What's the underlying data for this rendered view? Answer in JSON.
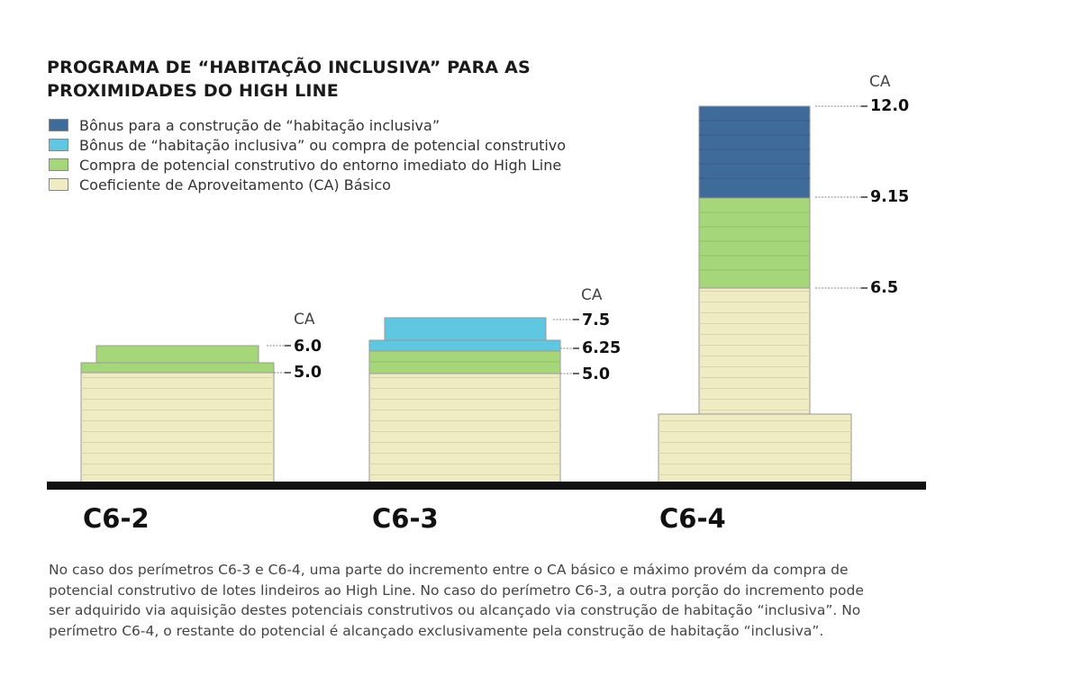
{
  "title": {
    "line1": "PROGRAMA DE “HABITAÇÃO INCLUSIVA” PARA AS",
    "line2": "PROXIMIDADES DO HIGH LINE"
  },
  "legend": [
    {
      "label": "Bônus para a construção de “habitação inclusiva”",
      "color": "#3e6b9a"
    },
    {
      "label": "Bônus de “habitação inclusiva” ou compra de potencial construtivo",
      "color": "#5fc7e0"
    },
    {
      "label": "Compra de potencial construtivo do entorno imediato do High Line",
      "color": "#a6d67a"
    },
    {
      "label": "Coeficiente de Aproveitamento (CA) Básico",
      "color": "#efebc2"
    }
  ],
  "colors": {
    "bonus_inclusiva": "#3e6b9a",
    "bonus_ou_compra": "#5fc7e0",
    "compra_entorno": "#a6d67a",
    "ca_basico": "#efebc2",
    "ground": "#111111",
    "outline": "#9a9a9a",
    "stripe": "#d9d4ac"
  },
  "buildings": [
    {
      "name": "C6-2",
      "ca_label": "CA",
      "levels": [
        {
          "label": "6.0",
          "value": 6.0
        },
        {
          "label": "5.0",
          "value": 5.0
        }
      ]
    },
    {
      "name": "C6-3",
      "ca_label": "CA",
      "levels": [
        {
          "label": "7.5",
          "value": 7.5
        },
        {
          "label": "6.25",
          "value": 6.25
        },
        {
          "label": "5.0",
          "value": 5.0
        }
      ]
    },
    {
      "name": "C6-4",
      "ca_label": "CA",
      "levels": [
        {
          "label": "12.0",
          "value": 12.0
        },
        {
          "label": "9.15",
          "value": 9.15
        },
        {
          "label": "6.5",
          "value": 6.5
        }
      ]
    }
  ],
  "caption": [
    "No caso dos perímetros C6-3 e C6-4, uma parte do incremento entre o CA básico e máximo provém da compra de",
    "potencial construtivo de lotes lindeiros ao High Line. No caso do perímetro C6-3, a outra porção do incremento pode",
    "ser adquirido via aquisição destes potenciais construtivos ou alcançado via construção de habitação “inclusiva”. No",
    "perímetro C6-4, o restante do potencial é alcançado exclusivamente pela construção de habitação “inclusiva”."
  ]
}
